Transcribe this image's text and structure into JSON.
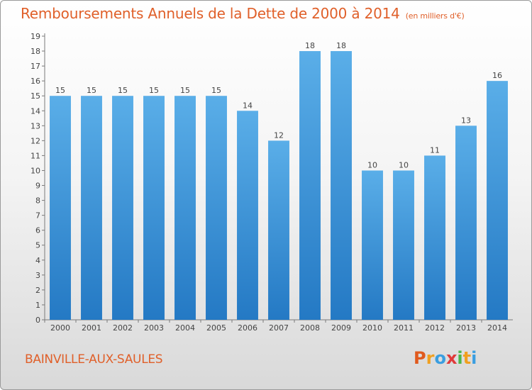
{
  "header": {
    "title": "Remboursements Annuels de la Dette de 2000 à 2014",
    "unit": "(en milliers d'€)"
  },
  "footer": {
    "place": "BAINVILLE-AUX-SAULES",
    "logo_letters": [
      "P",
      "r",
      "o",
      "x",
      "i",
      "t",
      "i"
    ]
  },
  "colors": {
    "title": "#e0602a",
    "bar_top": "#5aaee8",
    "bar_bottom": "#2479c4",
    "logo": [
      "#e05a1e",
      "#f0a020",
      "#3a9ee0",
      "#e03a3a",
      "#4ab84a",
      "#f0a020",
      "#3a9ee0"
    ]
  },
  "chart_data": {
    "type": "bar",
    "categories": [
      "2000",
      "2001",
      "2002",
      "2003",
      "2004",
      "2005",
      "2006",
      "2007",
      "2008",
      "2009",
      "2010",
      "2011",
      "2012",
      "2013",
      "2014"
    ],
    "values": [
      15,
      15,
      15,
      15,
      15,
      15,
      14,
      12,
      18,
      18,
      10,
      10,
      11,
      13,
      16
    ],
    "data_labels": [
      "15",
      "15",
      "15",
      "15",
      "15",
      "15",
      "14",
      "12",
      "18",
      "18",
      "10",
      "10",
      "11",
      "13",
      "16"
    ],
    "yticks": [
      "0",
      "1",
      "2",
      "3",
      "4",
      "5",
      "6",
      "7",
      "8",
      "9",
      "10",
      "11",
      "12",
      "13",
      "14",
      "15",
      "16",
      "17",
      "18",
      "19"
    ],
    "ylim": [
      0,
      19
    ],
    "grid": false
  }
}
